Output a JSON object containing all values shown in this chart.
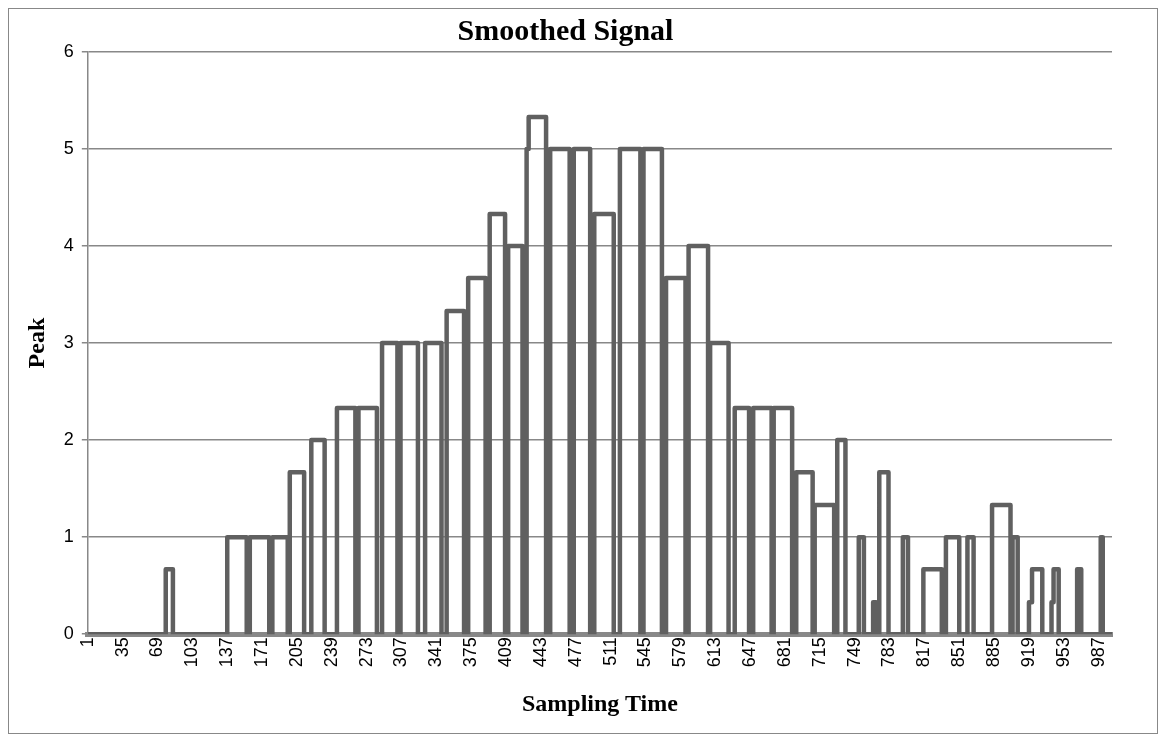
{
  "chart_data": {
    "type": "line",
    "title": "Smoothed Signal",
    "xlabel": "Sampling Time",
    "ylabel": "Peak",
    "x": [
      1,
      77,
      77,
      84,
      84,
      137,
      137,
      156,
      156,
      159,
      159,
      178,
      178,
      181,
      181,
      196,
      196,
      198,
      198,
      212,
      212,
      219,
      219,
      232,
      232,
      244,
      244,
      262,
      262,
      265,
      265,
      283,
      283,
      288,
      288,
      303,
      303,
      306,
      306,
      323,
      323,
      330,
      330,
      346,
      346,
      351,
      351,
      368,
      368,
      372,
      372,
      389,
      389,
      393,
      393,
      408,
      408,
      411,
      411,
      425,
      425,
      429,
      429,
      431,
      431,
      448,
      448,
      452,
      452,
      471,
      471,
      475,
      475,
      491,
      491,
      495,
      495,
      514,
      514,
      520,
      520,
      540,
      540,
      543,
      543,
      561,
      561,
      565,
      565,
      584,
      584,
      587,
      587,
      606,
      606,
      608,
      608,
      626,
      626,
      632,
      632,
      646,
      646,
      650,
      650,
      668,
      668,
      670,
      670,
      688,
      688,
      692,
      692,
      708,
      708,
      710,
      710,
      729,
      729,
      732,
      732,
      740,
      740,
      753,
      753,
      758,
      758,
      767,
      767,
      770,
      770,
      773,
      773,
      782,
      782,
      796,
      796,
      801,
      801,
      816,
      816,
      834,
      834,
      838,
      838,
      851,
      851,
      859,
      859,
      865,
      865,
      883,
      883,
      901,
      901,
      903,
      903,
      908,
      908,
      919,
      919,
      922,
      922,
      932,
      932,
      941,
      941,
      943,
      943,
      948,
      948,
      966,
      966,
      970,
      970,
      989,
      989,
      991,
      991,
      1000
    ],
    "series": [
      {
        "color": "#606060",
        "values": [
          0,
          0,
          0.67,
          0.67,
          0,
          0,
          1,
          1,
          0,
          0,
          1,
          1,
          0,
          0,
          1,
          1,
          0,
          0,
          1.67,
          1.67,
          0,
          0,
          2,
          2,
          0,
          0,
          2.33,
          2.33,
          0,
          0,
          2.33,
          2.33,
          0,
          0,
          3,
          3,
          0,
          0,
          3,
          3,
          0,
          0,
          3,
          3,
          0,
          0,
          3.33,
          3.33,
          0,
          0,
          3.67,
          3.67,
          0,
          0,
          4.33,
          4.33,
          0,
          0,
          4,
          4,
          0,
          0,
          5,
          5,
          5.33,
          5.33,
          0,
          0,
          5,
          5,
          0,
          0,
          5,
          5,
          0,
          0,
          4.33,
          4.33,
          0,
          0,
          5,
          5,
          0,
          0,
          5,
          5,
          0,
          0,
          3.67,
          3.67,
          0,
          0,
          4,
          4,
          0,
          0,
          3,
          3,
          0,
          0,
          2.33,
          2.33,
          0,
          0,
          2.33,
          2.33,
          0,
          0,
          2.33,
          2.33,
          0,
          0,
          1.67,
          1.67,
          0,
          0,
          1.33,
          1.33,
          0,
          0,
          2,
          2,
          0,
          0,
          1,
          1,
          0,
          0,
          0.33,
          0.33,
          0,
          0,
          1.67,
          1.67,
          0,
          0,
          1,
          1,
          0,
          0,
          0.67,
          0.67,
          0,
          0,
          1,
          1,
          0,
          0,
          1,
          1,
          0,
          0,
          1.33,
          1.33,
          0,
          0,
          1,
          1,
          0,
          0,
          0.33,
          0.33,
          0.67,
          0.67,
          0,
          0,
          0.33,
          0.33,
          0.67,
          0.67,
          0,
          0,
          0.67,
          0.67,
          0,
          0,
          1,
          1,
          0,
          0
        ]
      }
    ],
    "xlim": [
      1,
      1000
    ],
    "xticks": [
      1,
      35,
      69,
      103,
      137,
      171,
      205,
      239,
      273,
      307,
      341,
      375,
      409,
      443,
      477,
      511,
      545,
      579,
      613,
      647,
      681,
      715,
      749,
      783,
      817,
      851,
      885,
      919,
      953,
      987
    ],
    "ylim": [
      0,
      6
    ],
    "yticks": [
      0,
      1,
      2,
      3,
      4,
      5,
      6
    ],
    "grid": "y",
    "legend": false,
    "marker": "none",
    "line_style": "solid"
  }
}
